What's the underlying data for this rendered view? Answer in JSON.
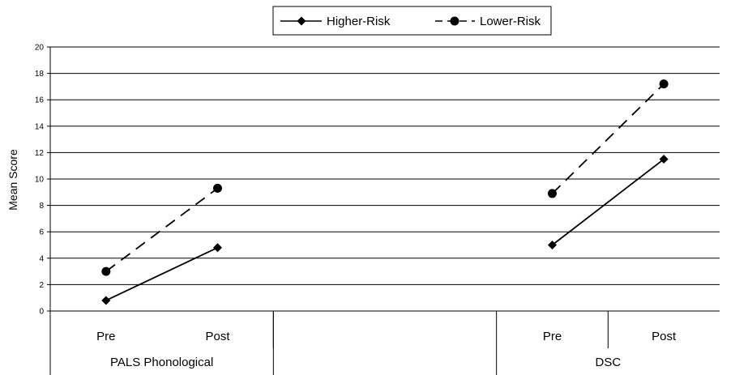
{
  "chart_data": {
    "type": "line",
    "ylabel": "Mean Score",
    "ylim": [
      0,
      20
    ],
    "yticks": [
      0,
      2,
      4,
      6,
      8,
      10,
      12,
      14,
      16,
      18,
      20
    ],
    "grid": true,
    "legend_position": "top-center",
    "groups": [
      "PALS Phonological",
      "",
      "DSC"
    ],
    "categories": [
      "Pre",
      "Post",
      "",
      "",
      "Pre",
      "Post"
    ],
    "series": [
      {
        "name": "Higher-Risk",
        "marker": "diamond",
        "line_style": "solid",
        "segments": [
          {
            "group": "PALS Phonological",
            "values": [
              0.8,
              4.8
            ]
          },
          {
            "group": "DSC",
            "values": [
              5.0,
              11.5
            ]
          }
        ]
      },
      {
        "name": "Lower-Risk",
        "marker": "circle",
        "line_style": "dashed",
        "segments": [
          {
            "group": "PALS Phonological",
            "values": [
              3.0,
              9.3
            ]
          },
          {
            "group": "DSC",
            "values": [
              8.9,
              17.2
            ]
          }
        ]
      }
    ],
    "colors": {
      "line": "#000000",
      "grid": "#000000"
    }
  }
}
